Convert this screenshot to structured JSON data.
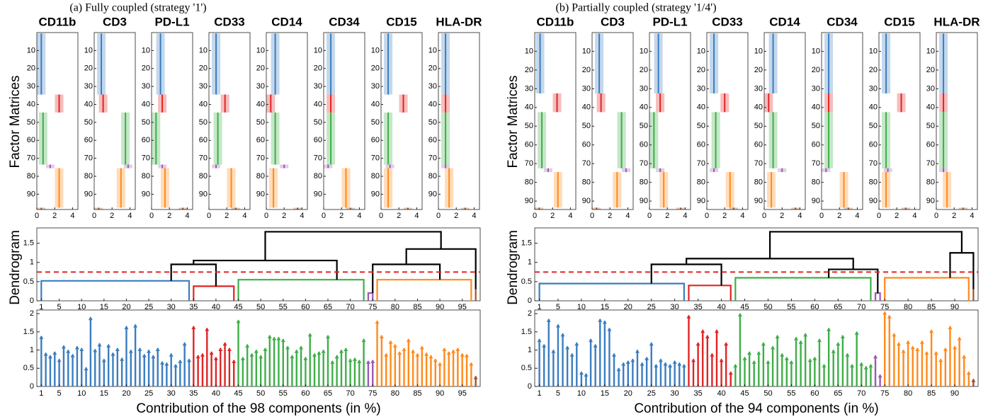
{
  "chart_data": [
    {
      "type": "stem",
      "title": "(a) Fully coupled (strategy '1')",
      "factor_ylabel": "Factor Matrices",
      "factor_xlim": [
        0,
        4.6
      ],
      "factor_xticks": [
        0,
        2,
        4
      ],
      "factor_ylim": [
        0,
        98.5
      ],
      "factor_yticks": [
        10,
        20,
        30,
        40,
        50,
        60,
        70,
        80,
        90
      ],
      "clusters": [
        {
          "color": "#3a7dc0",
          "range": [
            1,
            34
          ],
          "height": 0.52
        },
        {
          "color": "#e02424",
          "range": [
            35,
            44
          ],
          "height": 0.38
        },
        {
          "color": "#3fae49",
          "range": [
            45,
            73
          ],
          "height": 0.55
        },
        {
          "color": "#9b59b6",
          "range": [
            74,
            75
          ],
          "height": 0.2
        },
        {
          "color": "#ff8a1c",
          "range": [
            76,
            97
          ],
          "height": 0.55
        },
        {
          "color": "#a0522d",
          "range": [
            98,
            98
          ],
          "height": 0.3
        }
      ],
      "markers": [
        {
          "name": "CD11b",
          "values": [
            0.5,
            2.5,
            0.7,
            1.5,
            2.5,
            0.5
          ]
        },
        {
          "name": "CD3",
          "values": [
            0.8,
            1.0,
            3.5,
            3.8,
            3.0,
            0.5
          ]
        },
        {
          "name": "PD-L1",
          "values": [
            1.0,
            1.2,
            0.5,
            1.2,
            1.5,
            3.5
          ]
        },
        {
          "name": "CD33",
          "values": [
            0.8,
            1.8,
            1.0,
            0.8,
            2.5,
            3.0
          ]
        },
        {
          "name": "CD14",
          "values": [
            1.0,
            0.5,
            1.0,
            2.0,
            0.8,
            3.5
          ]
        },
        {
          "name": "CD34",
          "values": [
            0.8,
            0.8,
            0.8,
            0.5,
            2.5,
            3.0
          ]
        },
        {
          "name": "CD15",
          "values": [
            0.8,
            2.5,
            0.8,
            1.0,
            0.8,
            3.0
          ]
        },
        {
          "name": "HLA-DR",
          "values": [
            0.8,
            0.8,
            0.8,
            0.8,
            1.2,
            3.0
          ]
        }
      ],
      "dendrogram_ylabel": "Dendrogram",
      "dendrogram_ylim": [
        0,
        1.9
      ],
      "dendrogram_yticks": [
        0,
        0.5,
        1,
        1.5
      ],
      "threshold": 0.75,
      "links": [
        {
          "x": [
            30,
            40
          ],
          "y": [
            0.52,
            0.38
          ],
          "height": 0.95
        },
        {
          "x": [
            35,
            67
          ],
          "y": [
            0.95,
            0.55
          ],
          "height": 1.05
        },
        {
          "x": [
            75,
            90
          ],
          "y": [
            0.2,
            0.55
          ],
          "height": 0.95
        },
        {
          "x": [
            82.5,
            98
          ],
          "y": [
            0.95,
            0.3
          ],
          "height": 1.35
        },
        {
          "x": [
            51,
            90.25
          ],
          "y": [
            1.05,
            1.35
          ],
          "height": 1.8
        }
      ],
      "xlabel": "Contribution of the 98 components (in %)",
      "xlim": [
        0,
        99
      ],
      "xticks": [
        1,
        5,
        10,
        15,
        20,
        25,
        30,
        35,
        40,
        45,
        50,
        55,
        60,
        65,
        70,
        75,
        80,
        85,
        90,
        95
      ],
      "ylim": [
        0,
        2.1
      ],
      "yticks": [
        0,
        0.5,
        1,
        1.5,
        2
      ],
      "values": [
        1.38,
        0.92,
        0.85,
        0.95,
        0.75,
        1.12,
        1.0,
        0.88,
        1.1,
        1.05,
        0.52,
        1.9,
        1.02,
        1.18,
        0.75,
        1.15,
        0.92,
        1.05,
        0.78,
        1.65,
        1.0,
        1.7,
        1.05,
        0.88,
        1.0,
        0.85,
        1.05,
        0.68,
        0.65,
        0.9,
        0.6,
        0.72,
        1.2,
        0.75,
        1.65,
        0.85,
        0.9,
        1.6,
        0.95,
        0.8,
        1.05,
        1.2,
        1.05,
        0.72,
        1.82,
        0.8,
        1.15,
        0.9,
        1.0,
        0.85,
        1.05,
        1.4,
        1.35,
        1.35,
        1.3,
        1.1,
        0.85,
        1.0,
        1.1,
        0.8,
        1.45,
        0.9,
        0.95,
        1.0,
        1.4,
        0.7,
        0.85,
        1.0,
        1.05,
        0.75,
        0.78,
        0.72,
        1.3,
        0.7,
        0.72,
        1.8,
        1.4,
        0.9,
        1.25,
        1.15,
        0.95,
        1.05,
        1.3,
        1.0,
        0.9,
        1.1,
        0.92,
        0.85,
        0.75,
        0.65,
        1.05,
        0.95,
        1.0,
        1.05,
        0.9,
        0.88,
        0.65,
        0.28
      ]
    },
    {
      "type": "stem",
      "title": "(b) Partially coupled (strategy '1/4')",
      "factor_ylabel": "Factor Matrices",
      "factor_xlim": [
        0,
        4.6
      ],
      "factor_xticks": [
        0,
        2,
        4
      ],
      "factor_ylim": [
        0,
        94.5
      ],
      "factor_yticks": [
        10,
        20,
        30,
        40,
        50,
        60,
        70,
        80,
        90
      ],
      "clusters": [
        {
          "color": "#3a7dc0",
          "range": [
            1,
            32
          ],
          "height": 0.45
        },
        {
          "color": "#e02424",
          "range": [
            33,
            42
          ],
          "height": 0.4
        },
        {
          "color": "#3fae49",
          "range": [
            43,
            72
          ],
          "height": 0.6
        },
        {
          "color": "#9b59b6",
          "range": [
            73,
            74
          ],
          "height": 0.2
        },
        {
          "color": "#ff8a1c",
          "range": [
            75,
            93
          ],
          "height": 0.6
        },
        {
          "color": "#a0522d",
          "range": [
            94,
            94
          ],
          "height": 0.3
        }
      ],
      "markers": [
        {
          "name": "CD11b",
          "values": [
            0.6,
            2.5,
            0.8,
            1.5,
            2.6,
            0.5
          ]
        },
        {
          "name": "CD3",
          "values": [
            0.8,
            1.0,
            3.3,
            3.8,
            2.8,
            0.5
          ]
        },
        {
          "name": "PD-L1",
          "values": [
            1.0,
            1.2,
            0.5,
            1.2,
            1.6,
            3.5
          ]
        },
        {
          "name": "CD33",
          "values": [
            0.8,
            2.0,
            1.0,
            0.8,
            2.6,
            3.0
          ]
        },
        {
          "name": "CD14",
          "values": [
            1.0,
            0.5,
            1.0,
            2.0,
            0.8,
            3.5
          ]
        },
        {
          "name": "CD34",
          "values": [
            0.8,
            0.8,
            0.8,
            0.5,
            2.5,
            3.0
          ]
        },
        {
          "name": "CD15",
          "values": [
            0.8,
            2.5,
            0.8,
            1.0,
            0.8,
            3.0
          ]
        },
        {
          "name": "HLA-DR",
          "values": [
            0.8,
            0.8,
            0.8,
            0.8,
            1.2,
            3.0
          ]
        }
      ],
      "dendrogram_ylabel": "Dendrogram",
      "dendrogram_ylim": [
        0,
        1.9
      ],
      "dendrogram_yticks": [
        0,
        0.5,
        1,
        1.5
      ],
      "threshold": 0.75,
      "links": [
        {
          "x": [
            25,
            40
          ],
          "y": [
            0.45,
            0.4
          ],
          "height": 0.95
        },
        {
          "x": [
            63,
            73.5
          ],
          "y": [
            0.6,
            0.2
          ],
          "height": 0.82
        },
        {
          "x": [
            32.5,
            68.25
          ],
          "y": [
            0.95,
            0.82
          ],
          "height": 1.1
        },
        {
          "x": [
            89,
            94
          ],
          "y": [
            0.6,
            0.3
          ],
          "height": 1.25
        },
        {
          "x": [
            50.4,
            91.5
          ],
          "y": [
            1.1,
            1.25
          ],
          "height": 1.8
        }
      ],
      "xlabel": "Contribution of the 94 components (in %)",
      "xlim": [
        0,
        95
      ],
      "xticks": [
        1,
        5,
        10,
        15,
        20,
        25,
        30,
        35,
        40,
        45,
        50,
        55,
        60,
        65,
        70,
        75,
        80,
        85,
        90
      ],
      "ylim": [
        0,
        2.1
      ],
      "yticks": [
        0,
        0.5,
        1,
        1.5,
        2
      ],
      "values": [
        1.3,
        1.15,
        1.85,
        1.0,
        1.7,
        1.45,
        1.1,
        0.9,
        1.2,
        0.4,
        0.35,
        1.3,
        1.15,
        1.85,
        1.8,
        1.6,
        0.9,
        0.5,
        0.65,
        0.7,
        0.75,
        1.0,
        0.65,
        0.8,
        1.2,
        0.6,
        0.75,
        0.65,
        0.6,
        0.7,
        0.65,
        0.6,
        1.95,
        0.75,
        1.2,
        1.55,
        1.4,
        0.9,
        1.55,
        0.75,
        1.2,
        0.4,
        0.6,
        2.0,
        0.8,
        0.95,
        0.7,
        0.95,
        1.2,
        0.7,
        1.1,
        1.4,
        0.9,
        0.8,
        0.7,
        1.35,
        1.25,
        1.45,
        0.75,
        0.8,
        1.3,
        0.6,
        1.6,
        1.0,
        1.2,
        1.4,
        0.9,
        0.6,
        1.5,
        0.65,
        0.55,
        0.6,
        0.85,
        0.32,
        2.05,
        1.95,
        1.45,
        1.2,
        1.0,
        1.25,
        1.1,
        1.05,
        1.25,
        0.95,
        1.55,
        0.95,
        0.75,
        1.05,
        1.65,
        1.1,
        1.35,
        0.85,
        0.4,
        0.2
      ]
    }
  ]
}
